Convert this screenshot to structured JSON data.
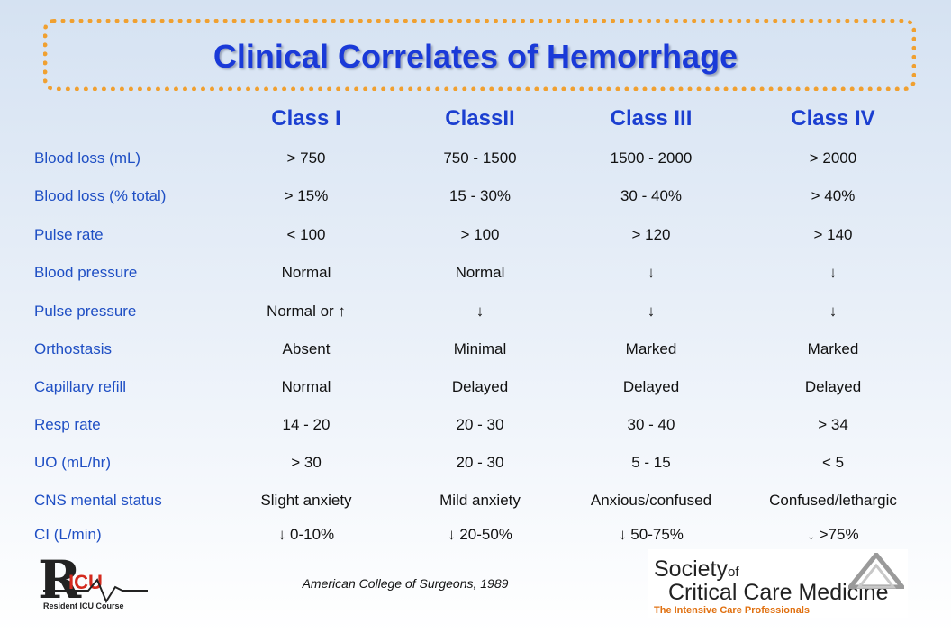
{
  "title": "Clinical Correlates of Hemorrhage",
  "columns": [
    "Class I",
    "ClassII",
    "Class III",
    "Class IV"
  ],
  "rows": [
    {
      "label": "Blood loss (mL)",
      "values": [
        "> 750",
        "750 - 1500",
        "1500 - 2000",
        "> 2000"
      ]
    },
    {
      "label": "Blood loss (% total)",
      "values": [
        "> 15%",
        "15 - 30%",
        "30 - 40%",
        "> 40%"
      ]
    },
    {
      "label": "Pulse rate",
      "values": [
        "< 100",
        "> 100",
        "> 120",
        "> 140"
      ]
    },
    {
      "label": "Blood pressure",
      "values": [
        "Normal",
        "Normal",
        "↓",
        "↓"
      ]
    },
    {
      "label": "Pulse pressure",
      "values": [
        "Normal or ↑",
        "↓",
        "↓",
        "↓"
      ]
    },
    {
      "label": "Orthostasis",
      "values": [
        "Absent",
        "Minimal",
        "Marked",
        "Marked"
      ]
    },
    {
      "label": "Capillary refill",
      "values": [
        "Normal",
        "Delayed",
        "Delayed",
        "Delayed"
      ]
    },
    {
      "label": "Resp rate",
      "values": [
        "14 - 20",
        "20 - 30",
        "30 - 40",
        "> 34"
      ]
    },
    {
      "label": "UO (mL/hr)",
      "values": [
        "> 30",
        "20 - 30",
        "5 - 15",
        "< 5"
      ]
    },
    {
      "label": "CNS mental status",
      "values": [
        "Slight anxiety",
        "Mild anxiety",
        "Anxious/confused",
        "Confused/lethargic"
      ]
    },
    {
      "label": "CI (L/min)",
      "values": [
        "↓ 0-10%",
        "↓ 20-50%",
        "↓ 50-75%",
        "↓ >75%"
      ]
    }
  ],
  "citation": "American College of Surgeons, 1989",
  "logos": {
    "ricu_letters": "R ICU",
    "ricu_subtitle": "Resident ICU Course",
    "sccm_line1": "Society",
    "sccm_of": "of",
    "sccm_line2": "Critical Care Medicine",
    "sccm_tagline": "The Intensive Care Professionals"
  },
  "colors": {
    "title": "#1a3ad8",
    "header": "#1b3fd0",
    "row_label": "#1f4fc4",
    "frame": "#f0a030",
    "ricu_red": "#d42a1e",
    "sccm_orange": "#e07010"
  }
}
